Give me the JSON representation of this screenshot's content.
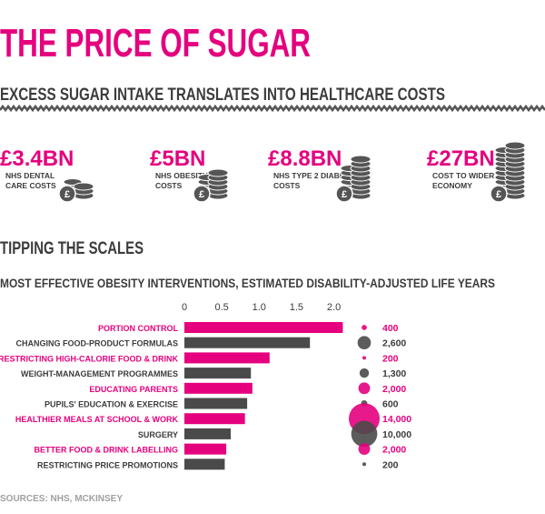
{
  "header": {
    "title": "THE PRICE OF SUGAR",
    "subtitle": "EXCESS SUGAR INTAKE TRANSLATES INTO HEALTHCARE COSTS"
  },
  "costs": [
    {
      "value": "£3.4BN",
      "label": [
        "NHS DENTAL",
        "CARE COSTS"
      ]
    },
    {
      "value": "£5BN",
      "label": [
        "NHS OBESITY",
        "COSTS"
      ]
    },
    {
      "value": "£8.8BN",
      "label": [
        "NHS TYPE 2 DIABETES",
        "COSTS"
      ]
    },
    {
      "value": "£27BN",
      "label": [
        "COST TO WIDER",
        "ECONOMY"
      ]
    }
  ],
  "section": "TIPPING THE SCALES",
  "chart_data": {
    "type": "bar",
    "orientation": "horizontal",
    "title": "MOST EFFECTIVE OBESITY INTERVENTIONS, ESTIMATED DISABILITY-ADJUSTED LIFE YEARS",
    "categories": [
      "PORTION CONTROL",
      "CHANGING FOOD-PRODUCT FORMULAS",
      "RESTRICTING HIGH-CALORIE FOOD & DRINK",
      "WEIGHT-MANAGEMENT PROGRAMMES",
      "EDUCATING PARENTS",
      "PUPILS' EDUCATION & EXERCISE",
      "HEALTHIER MEALS AT SCHOOL & WORK",
      "SURGERY",
      "BETTER FOOD & DRINK LABELLING",
      "RESTRICTING PRICE PROMOTIONS"
    ],
    "values": [
      2.12,
      1.68,
      1.14,
      0.89,
      0.91,
      0.84,
      0.81,
      0.62,
      0.56,
      0.54
    ],
    "colors": [
      "#e5007e",
      "#4a4a4a",
      "#e5007e",
      "#4a4a4a",
      "#e5007e",
      "#4a4a4a",
      "#e5007e",
      "#4a4a4a",
      "#e5007e",
      "#4a4a4a"
    ],
    "bubbles": {
      "values": [
        400,
        2600,
        200,
        1300,
        2000,
        600,
        14000,
        10000,
        2000,
        200
      ],
      "value_labels": [
        "400",
        "2,600",
        "200",
        "1,300",
        "2,000",
        "600",
        "14,000",
        "10,000",
        "2,000",
        "200"
      ]
    },
    "xlim": [
      0,
      2.2
    ],
    "xticks": [
      0,
      0.5,
      {
        "value": 1,
        "label": "1.0"
      },
      1.5,
      {
        "value": 2,
        "label": "2.0"
      }
    ]
  },
  "source": "SOURCES: NHS, MCKINSEY"
}
